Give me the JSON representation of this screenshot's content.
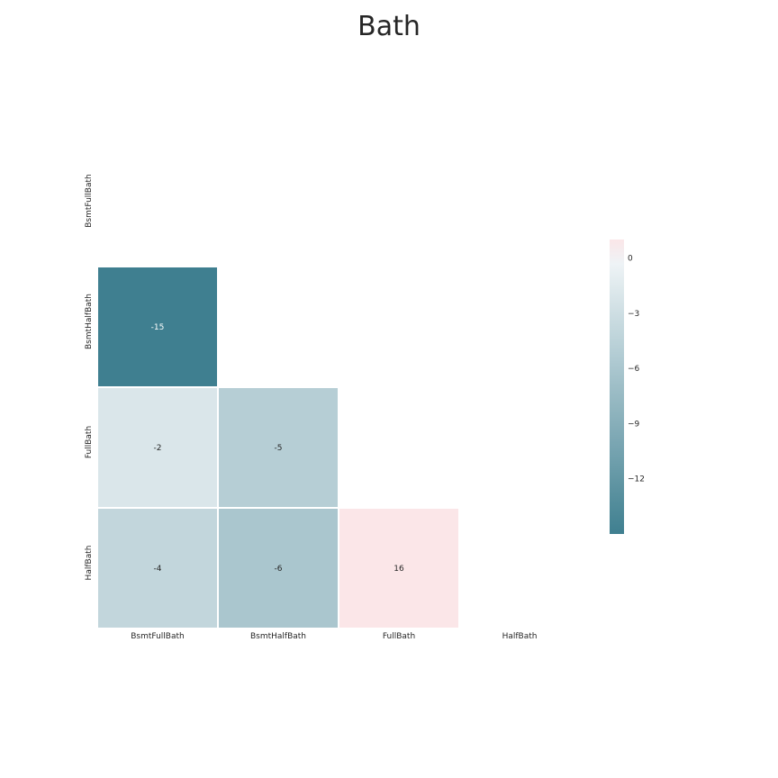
{
  "chart_data": {
    "type": "heatmap",
    "title": "Bath",
    "xlabel": "",
    "ylabel": "",
    "x_categories": [
      "BsmtFullBath",
      "BsmtHalfBath",
      "FullBath",
      "HalfBath"
    ],
    "y_categories": [
      "BsmtFullBath",
      "BsmtHalfBath",
      "FullBath",
      "HalfBath"
    ],
    "mask": "upper-triangle-and-diagonal",
    "cells": [
      {
        "row": 1,
        "col": 0,
        "value": -15,
        "label": "-15"
      },
      {
        "row": 2,
        "col": 0,
        "value": -2,
        "label": "-2"
      },
      {
        "row": 2,
        "col": 1,
        "value": -5,
        "label": "-5"
      },
      {
        "row": 3,
        "col": 0,
        "value": -4,
        "label": "-4"
      },
      {
        "row": 3,
        "col": 1,
        "value": -6,
        "label": "-6"
      },
      {
        "row": 3,
        "col": 2,
        "value": 16,
        "label": "16"
      }
    ],
    "color_range": [
      -15,
      1
    ],
    "colors": {
      "low": "#3f7f90",
      "mid": "#f2f6f8",
      "high": "#fbe6e8",
      "background": "#ffffff",
      "grid_line": "#ffffff"
    },
    "colorbar": {
      "ticks": [
        0,
        -3,
        -6,
        -9,
        -12
      ],
      "tick_labels": [
        "0",
        "−3",
        "−6",
        "−9",
        "−12"
      ]
    },
    "legend_position": "right"
  }
}
